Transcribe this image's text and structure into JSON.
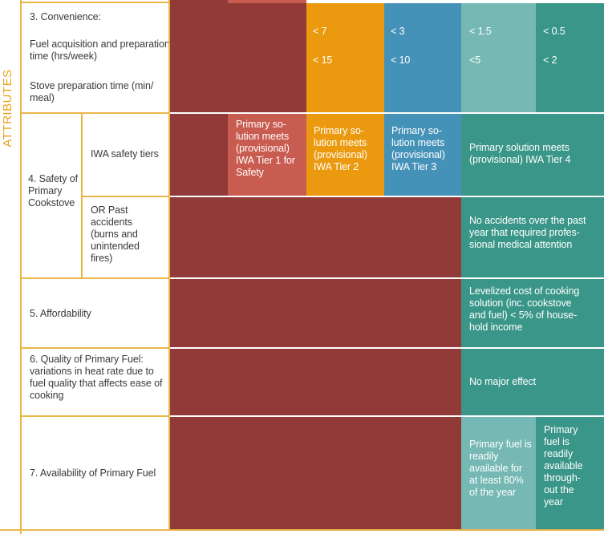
{
  "side_label": "ATTRIBUTES",
  "colors": {
    "tier0": "#913a37",
    "tier1": "#c95c50",
    "tier2": "#eb9a0f",
    "tier3": "#4592b9",
    "tier4": "#75b8b4",
    "tier5": "#3a9688",
    "rule": "#e9b64a",
    "side_label": "#e9a21a"
  },
  "rows": {
    "convenience": {
      "title": "3. Convenience:",
      "fuel_label": "Fuel acquisition and preparation time (hrs/week)",
      "stove_label": "Stove preparation time (min/ meal)",
      "fuel_values": [
        "< 7",
        "< 3",
        "< 1.5",
        "< 0.5"
      ],
      "stove_values": [
        "< 15",
        "< 10",
        "<5",
        "< 2"
      ]
    },
    "safety": {
      "title": "4. Safety of Primary Cookstove",
      "iwa_label": "IWA safety tiers",
      "past_label": "OR Past accidents (burns and unintended fires)",
      "tier1": "Primary so- lution meets (provisional) IWA Tier 1 for Safety",
      "tier2": "Primary so- lution meets (provisional) IWA Tier 2",
      "tier3": "Primary so- lution meets (provisional) IWA Tier 3",
      "tier4": "Primary solution meets (provisional) IWA Tier 4",
      "past_top": "No accidents over the past year that required profes- sional medical attention"
    },
    "affordability": {
      "title": "5. Affordability",
      "top": "Levelized cost of cooking solution (inc. cookstove and fuel) < 5% of house- hold income"
    },
    "quality": {
      "title": "6. Quality of Primary Fuel: variations in heat rate due to fuel quality that affects ease of cooking",
      "top": "No major effect"
    },
    "availability": {
      "title": "7. Availability of Primary Fuel",
      "tier4": "Primary fuel is readily available for at least 80% of the year",
      "tier5": "Primary fuel is readily available through- out the year"
    }
  }
}
